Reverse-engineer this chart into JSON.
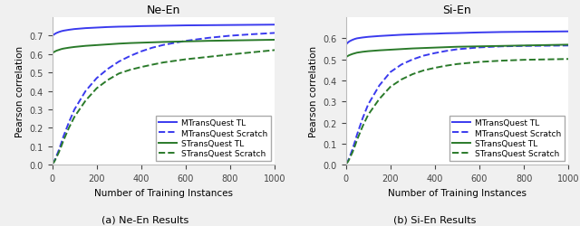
{
  "ne_en": {
    "title": "Ne-En",
    "xlabel": "Number of Training Instances",
    "ylabel": "Pearson correlation",
    "caption": "(a) Ne-En Results",
    "x": [
      0,
      5,
      10,
      15,
      20,
      30,
      40,
      50,
      75,
      100,
      150,
      200,
      250,
      300,
      350,
      400,
      450,
      500,
      600,
      700,
      800,
      900,
      1000
    ],
    "MTransQuest_TL": [
      0.7,
      0.704,
      0.708,
      0.712,
      0.715,
      0.72,
      0.724,
      0.727,
      0.732,
      0.736,
      0.741,
      0.744,
      0.747,
      0.749,
      0.75,
      0.752,
      0.753,
      0.754,
      0.756,
      0.757,
      0.758,
      0.759,
      0.76
    ],
    "MTransQuest_Scratch": [
      0.005,
      0.012,
      0.022,
      0.035,
      0.05,
      0.08,
      0.115,
      0.152,
      0.23,
      0.3,
      0.4,
      0.47,
      0.52,
      0.56,
      0.59,
      0.615,
      0.635,
      0.65,
      0.672,
      0.688,
      0.7,
      0.708,
      0.715
    ],
    "STransQuest_TL": [
      0.605,
      0.609,
      0.613,
      0.616,
      0.619,
      0.623,
      0.627,
      0.63,
      0.635,
      0.639,
      0.645,
      0.649,
      0.653,
      0.657,
      0.66,
      0.662,
      0.664,
      0.666,
      0.669,
      0.672,
      0.674,
      0.676,
      0.678
    ],
    "STransQuest_Scratch": [
      0.005,
      0.01,
      0.018,
      0.03,
      0.042,
      0.068,
      0.098,
      0.13,
      0.2,
      0.26,
      0.348,
      0.415,
      0.46,
      0.495,
      0.515,
      0.53,
      0.543,
      0.555,
      0.572,
      0.585,
      0.598,
      0.61,
      0.622
    ],
    "ylim": [
      0.0,
      0.8
    ],
    "yticks": [
      0.0,
      0.1,
      0.2,
      0.3,
      0.4,
      0.5,
      0.6,
      0.7
    ]
  },
  "si_en": {
    "title": "Si-En",
    "xlabel": "Number of Training Instances",
    "ylabel": "Pearson correlation",
    "caption": "(b) Si-En Results",
    "x": [
      0,
      5,
      10,
      15,
      20,
      30,
      40,
      50,
      75,
      100,
      150,
      200,
      250,
      300,
      350,
      400,
      450,
      500,
      600,
      700,
      800,
      900,
      1000
    ],
    "MTransQuest_TL": [
      0.57,
      0.576,
      0.581,
      0.585,
      0.588,
      0.593,
      0.597,
      0.6,
      0.604,
      0.607,
      0.611,
      0.614,
      0.617,
      0.619,
      0.621,
      0.622,
      0.624,
      0.625,
      0.628,
      0.63,
      0.631,
      0.632,
      0.633
    ],
    "MTransQuest_Scratch": [
      0.005,
      0.01,
      0.02,
      0.032,
      0.046,
      0.075,
      0.108,
      0.143,
      0.22,
      0.286,
      0.376,
      0.44,
      0.476,
      0.5,
      0.518,
      0.53,
      0.54,
      0.548,
      0.557,
      0.562,
      0.564,
      0.565,
      0.566
    ],
    "STransQuest_TL": [
      0.51,
      0.514,
      0.517,
      0.52,
      0.522,
      0.526,
      0.529,
      0.532,
      0.536,
      0.539,
      0.543,
      0.546,
      0.549,
      0.552,
      0.554,
      0.556,
      0.558,
      0.56,
      0.562,
      0.564,
      0.566,
      0.568,
      0.57
    ],
    "STransQuest_Scratch": [
      0.005,
      0.009,
      0.016,
      0.026,
      0.038,
      0.06,
      0.088,
      0.118,
      0.182,
      0.237,
      0.312,
      0.37,
      0.405,
      0.43,
      0.448,
      0.46,
      0.47,
      0.478,
      0.488,
      0.494,
      0.498,
      0.5,
      0.502
    ],
    "ylim": [
      0.0,
      0.7
    ],
    "yticks": [
      0.0,
      0.1,
      0.2,
      0.3,
      0.4,
      0.5,
      0.6
    ]
  },
  "blue_color": "#3a3aee",
  "green_color": "#2a7a2a",
  "legend_labels": [
    "MTransQuest TL",
    "MTransQuest Scratch",
    "STransQuest TL",
    "STransQuest Scratch"
  ],
  "figsize": [
    6.4,
    2.51
  ],
  "dpi": 100
}
